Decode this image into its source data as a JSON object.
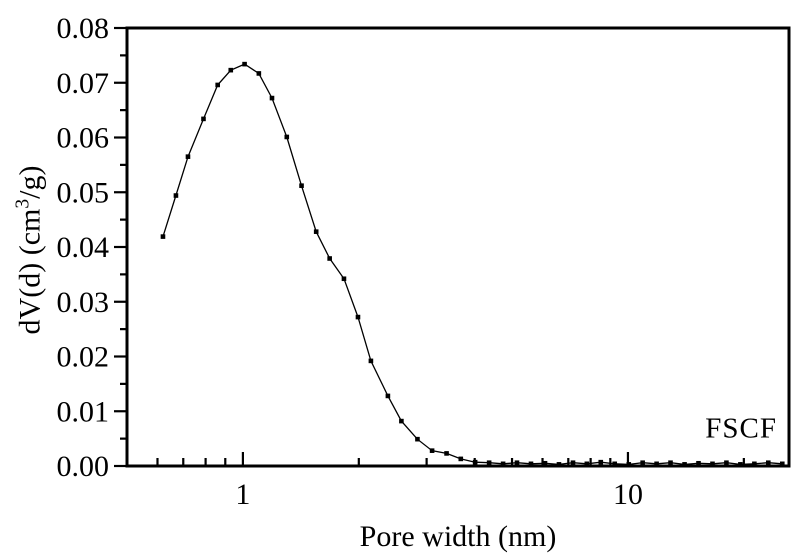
{
  "chart_data": {
    "type": "line",
    "title": "",
    "xlabel": "Pore width (nm)",
    "ylabel": "dV(d) (cm3/g)",
    "ylabel_parts": {
      "prefix": "dV(d) (cm",
      "sup": "3",
      "suffix": "/g)"
    },
    "annotation": "FSCF",
    "x_scale": "log",
    "xlim": [
      0.5,
      26.2
    ],
    "ylim": [
      0,
      0.08
    ],
    "grid": false,
    "legend": "none",
    "line_color": "#000000",
    "marker": "filled-square",
    "x_major_ticks": [
      1,
      10
    ],
    "x_major_tick_labels": [
      "1",
      "10"
    ],
    "x_minor_ticks": [
      0.6,
      0.7,
      0.8,
      0.9,
      2,
      3,
      4,
      5,
      6,
      7,
      8,
      9,
      20
    ],
    "y_major_ticks": [
      0,
      0.01,
      0.02,
      0.03,
      0.04,
      0.05,
      0.06,
      0.07,
      0.08
    ],
    "y_tick_labels": [
      "0.00",
      "0.01",
      "0.02",
      "0.03",
      "0.04",
      "0.05",
      "0.06",
      "0.07",
      "0.08"
    ],
    "y_minor_ticks": [
      0.005,
      0.015,
      0.025,
      0.035,
      0.045,
      0.055,
      0.065,
      0.075
    ],
    "series": [
      {
        "name": "FSCF",
        "x": [
          0.62,
          0.67,
          0.72,
          0.79,
          0.86,
          0.93,
          1.01,
          1.1,
          1.19,
          1.3,
          1.42,
          1.55,
          1.68,
          1.83,
          1.99,
          2.15,
          2.38,
          2.58,
          2.84,
          3.1,
          3.38,
          3.68,
          4.01,
          4.36,
          4.74,
          5.15,
          5.6,
          6.09,
          6.62,
          7.2,
          7.82,
          8.5,
          9.24,
          10.05,
          10.92,
          11.87,
          12.9,
          14.03,
          15.25,
          16.58,
          18.02,
          19.59,
          21.3,
          23.15,
          25.17
        ],
        "y": [
          0.0419,
          0.0494,
          0.0565,
          0.0634,
          0.0696,
          0.0723,
          0.0734,
          0.0717,
          0.0672,
          0.0601,
          0.0512,
          0.0428,
          0.0379,
          0.0342,
          0.0272,
          0.0192,
          0.0128,
          0.0082,
          0.0049,
          0.0028,
          0.0023,
          0.0013,
          0.0007,
          0.0006,
          0.0004,
          0.0006,
          0.0004,
          0.0005,
          0.0003,
          0.0006,
          0.0004,
          0.0007,
          0.0004,
          0.0003,
          0.0006,
          0.0004,
          0.0006,
          0.0003,
          0.0005,
          0.0004,
          0.0006,
          0.0003,
          0.0004,
          0.0006,
          0.0004
        ]
      }
    ]
  }
}
